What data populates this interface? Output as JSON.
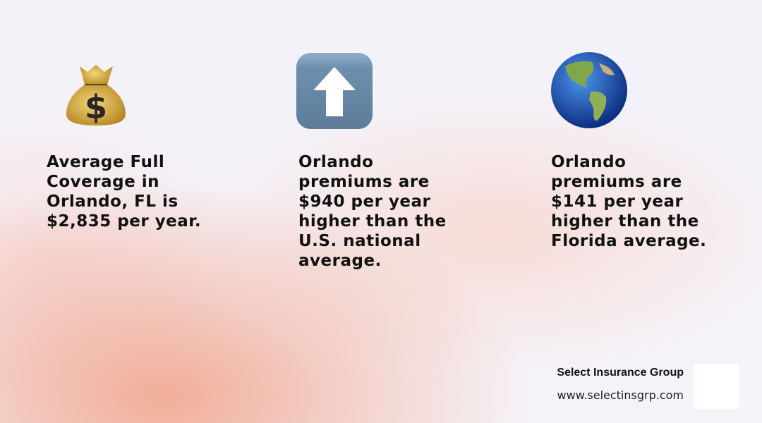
{
  "stats": [
    {
      "icon": "money-bag-icon",
      "lines": [
        "Average Full",
        "Coverage in",
        "Orlando, FL is",
        "$2,835 per year."
      ]
    },
    {
      "icon": "up-arrow-icon",
      "lines": [
        "Orlando",
        "premiums are",
        "$940 per year",
        "higher than the",
        "U.S. national",
        "average."
      ]
    },
    {
      "icon": "globe-americas-icon",
      "lines": [
        "Orlando",
        "premiums are",
        "$141 per year",
        "higher than the",
        "Florida average."
      ]
    }
  ],
  "footer": {
    "company": "Select Insurance Group",
    "website": "www.selectinsgrp.com"
  },
  "colors": {
    "arrow_box": "#6b8bab",
    "money_bag": "#d9b24a",
    "globe_ocean": "#1f5fbf"
  }
}
